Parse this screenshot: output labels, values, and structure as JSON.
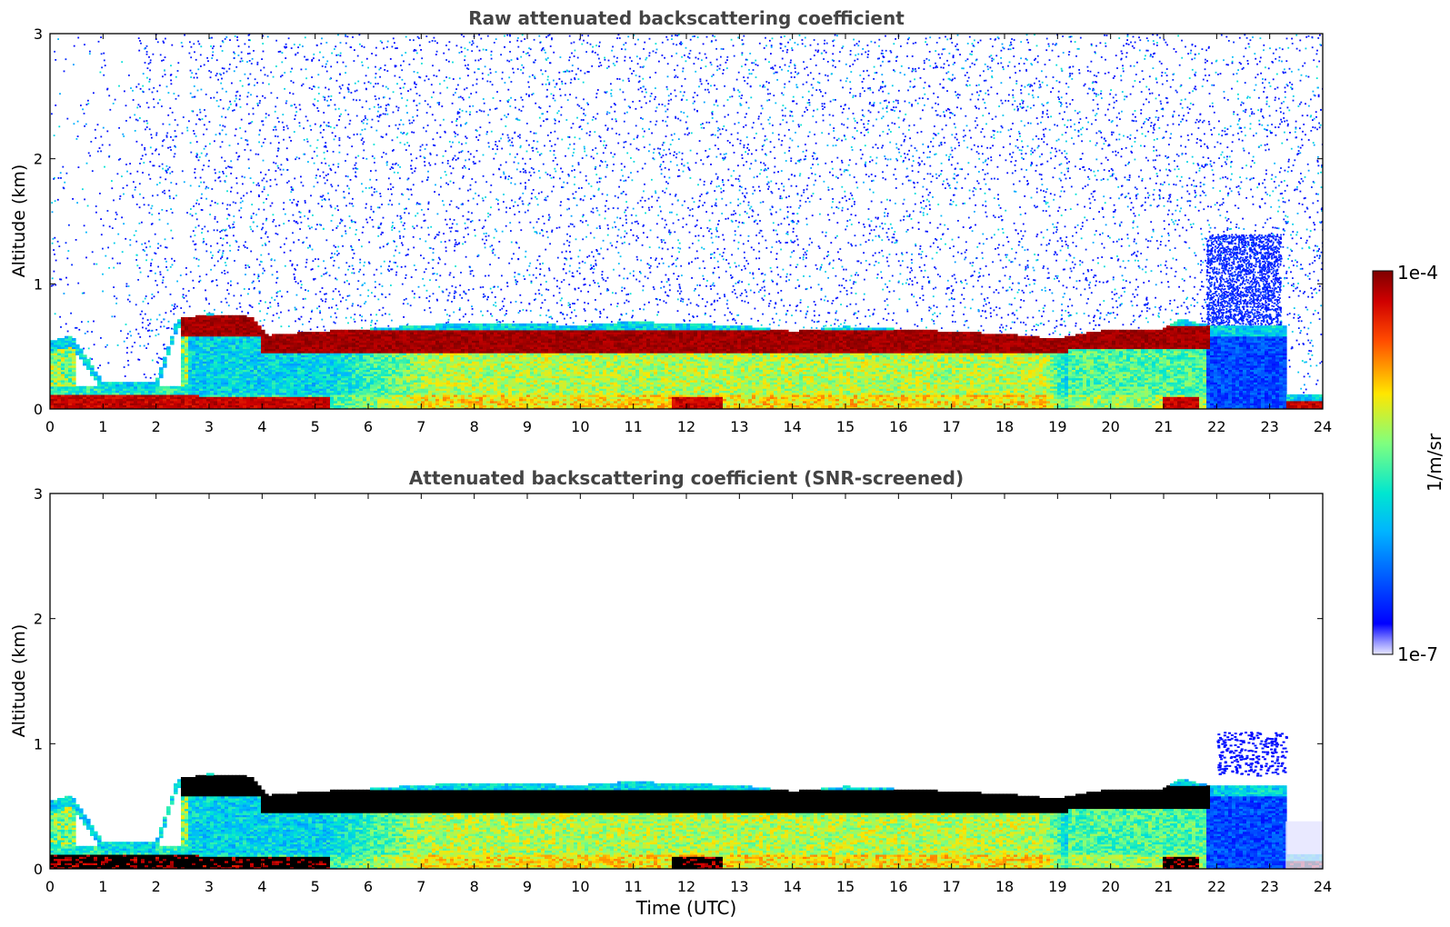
{
  "chart_data": [
    {
      "type": "heatmap",
      "title": "Raw attenuated backscattering coefficient",
      "xlabel": "",
      "ylabel": "Altitude (km)",
      "xlim": [
        0,
        24
      ],
      "ylim": [
        0,
        3
      ],
      "xticks": [
        "0",
        "1",
        "2",
        "3",
        "4",
        "5",
        "6",
        "7",
        "8",
        "9",
        "10",
        "11",
        "12",
        "13",
        "14",
        "15",
        "16",
        "17",
        "18",
        "19",
        "20",
        "21",
        "22",
        "23",
        "24"
      ],
      "yticks": [
        "0",
        "1",
        "2",
        "3"
      ],
      "scale": "log",
      "field": {
        "boundary_layer_top_km": [
          [
            0,
            0.5
          ],
          [
            0.4,
            0.55
          ],
          [
            1.0,
            0.18
          ],
          [
            2.0,
            0.18
          ],
          [
            2.4,
            0.68
          ],
          [
            3.0,
            0.72
          ],
          [
            3.8,
            0.7
          ],
          [
            4.1,
            0.55
          ],
          [
            5,
            0.58
          ],
          [
            6,
            0.6
          ],
          [
            7,
            0.63
          ],
          [
            8,
            0.65
          ],
          [
            9,
            0.64
          ],
          [
            10,
            0.63
          ],
          [
            11,
            0.66
          ],
          [
            12,
            0.64
          ],
          [
            13,
            0.63
          ],
          [
            14,
            0.58
          ],
          [
            15,
            0.62
          ],
          [
            16,
            0.6
          ],
          [
            17,
            0.58
          ],
          [
            18,
            0.56
          ],
          [
            19,
            0.52
          ],
          [
            19.3,
            0.55
          ],
          [
            20,
            0.6
          ],
          [
            21,
            0.6
          ],
          [
            21.3,
            0.68
          ],
          [
            22,
            0.62
          ],
          [
            23.3,
            0.62
          ],
          [
            23.3,
            0.08
          ],
          [
            24,
            0.08
          ]
        ],
        "strong_layer_segments": [
          {
            "t0": 2.5,
            "t1": 4.0,
            "z0": 0.58,
            "z1": 0.75
          },
          {
            "t0": 4.0,
            "t1": 19.2,
            "z0": 0.45,
            "z1": 0.64
          },
          {
            "t0": 19.2,
            "t1": 21.9,
            "z0": 0.48,
            "z1": 0.66
          }
        ],
        "surface_layer_segments": [
          {
            "t0": 0.0,
            "t1": 2.8,
            "z0": 0.0,
            "z1": 0.12
          },
          {
            "t0": 2.8,
            "t1": 5.3,
            "z0": 0.0,
            "z1": 0.1
          },
          {
            "t0": 11.7,
            "t1": 12.7,
            "z0": 0.0,
            "z1": 0.1
          },
          {
            "t0": 21.0,
            "t1": 21.7,
            "z0": 0.0,
            "z1": 0.1
          },
          {
            "t0": 23.3,
            "t1": 24.0,
            "z0": 0.0,
            "z1": 0.06
          }
        ],
        "noise_above_layer": true
      }
    },
    {
      "type": "heatmap",
      "title": "Attenuated backscattering coefficient (SNR-screened)",
      "xlabel": "Time (UTC)",
      "ylabel": "Altitude (km)",
      "xlim": [
        0,
        24
      ],
      "ylim": [
        0,
        3
      ],
      "xticks": [
        "0",
        "1",
        "2",
        "3",
        "4",
        "5",
        "6",
        "7",
        "8",
        "9",
        "10",
        "11",
        "12",
        "13",
        "14",
        "15",
        "16",
        "17",
        "18",
        "19",
        "20",
        "21",
        "22",
        "23",
        "24"
      ],
      "yticks": [
        "0",
        "1",
        "2",
        "3"
      ],
      "scale": "log",
      "field": {
        "saturated_color": "#000000",
        "noise_above_layer": false,
        "screened_patch": {
          "t0": 22.0,
          "t1": 23.3,
          "z0": 0.75,
          "z1": 1.1
        }
      }
    }
  ],
  "colorbar": {
    "label": "1/m/sr",
    "max_label": "1e-4",
    "min_label": "1e-7",
    "colormap": "jet",
    "colors": {
      "low": "#00007f",
      "mid": "#7fff7f",
      "high": "#7f0000",
      "saturated": "#000000"
    }
  }
}
